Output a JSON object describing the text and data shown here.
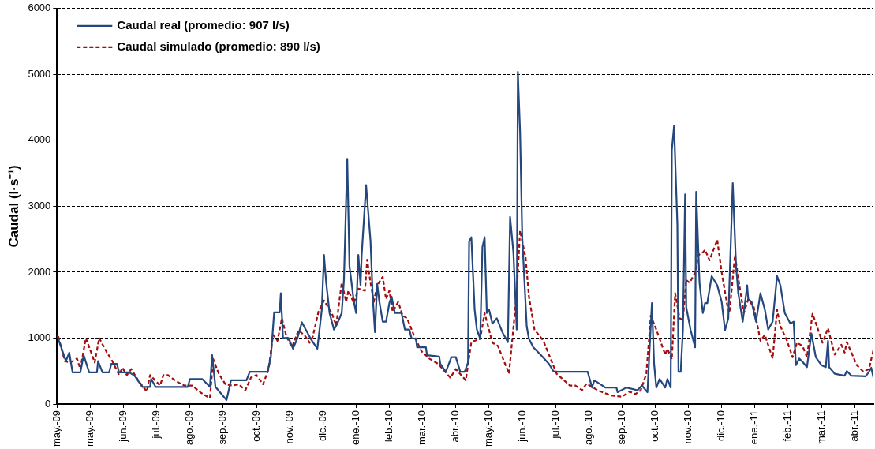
{
  "chart_data": {
    "type": "line",
    "ylabel": "Caudal (l·s⁻¹)",
    "xlim": [
      "2009-05-01",
      "2011-05-08"
    ],
    "xticks": [
      {
        "value": "2009-05-01",
        "label": "may.-09"
      },
      {
        "value": "2009-05-31",
        "label": "may.-09"
      },
      {
        "value": "2009-06-30",
        "label": "jun.-09"
      },
      {
        "value": "2009-07-30",
        "label": "jul.-09"
      },
      {
        "value": "2009-08-29",
        "label": "ago.-09"
      },
      {
        "value": "2009-09-28",
        "label": "sep.-09"
      },
      {
        "value": "2009-10-28",
        "label": "oct.-09"
      },
      {
        "value": "2009-11-27",
        "label": "nov.-09"
      },
      {
        "value": "2009-12-27",
        "label": "dic.-09"
      },
      {
        "value": "2010-01-26",
        "label": "ene.-10"
      },
      {
        "value": "2010-02-25",
        "label": "feb.-10"
      },
      {
        "value": "2010-03-27",
        "label": "mar.-10"
      },
      {
        "value": "2010-04-26",
        "label": "abr.-10"
      },
      {
        "value": "2010-05-26",
        "label": "may.-10"
      },
      {
        "value": "2010-06-25",
        "label": "jun.-10"
      },
      {
        "value": "2010-07-25",
        "label": "jul.-10"
      },
      {
        "value": "2010-08-24",
        "label": "ago.-10"
      },
      {
        "value": "2010-09-23",
        "label": "sep.-10"
      },
      {
        "value": "2010-10-23",
        "label": "oct.-10"
      },
      {
        "value": "2010-11-22",
        "label": "nov.-10"
      },
      {
        "value": "2010-12-22",
        "label": "dic.-10"
      },
      {
        "value": "2011-01-21",
        "label": "ene.-11"
      },
      {
        "value": "2011-02-20",
        "label": "feb.-11"
      },
      {
        "value": "2011-03-22",
        "label": "mar.-11"
      },
      {
        "value": "2011-04-21",
        "label": "abr.-11"
      }
    ],
    "ylim": [
      0,
      6000
    ],
    "yticks": [
      0,
      1000,
      2000,
      3000,
      4000,
      5000,
      6000
    ],
    "grid": "y",
    "legend": "top left",
    "marker": "none",
    "series": [
      {
        "name": "Caudal real (promedio: 907 l/s)",
        "color": "#24487e",
        "line_style": "solid",
        "x": [
          "2009-05-01",
          "2009-05-09",
          "2009-05-12",
          "2009-05-15",
          "2009-05-22",
          "2009-05-25",
          "2009-05-30",
          "2009-06-06",
          "2009-06-07",
          "2009-06-11",
          "2009-06-17",
          "2009-06-19",
          "2009-06-24",
          "2009-06-26",
          "2009-07-05",
          "2009-07-10",
          "2009-07-17",
          "2009-07-24",
          "2009-07-25",
          "2009-07-29",
          "2009-08-27",
          "2009-08-29",
          "2009-09-09",
          "2009-09-16",
          "2009-09-18",
          "2009-09-21",
          "2009-10-01",
          "2009-10-05",
          "2009-10-19",
          "2009-10-22",
          "2009-11-07",
          "2009-11-10",
          "2009-11-13",
          "2009-11-18",
          "2009-11-19",
          "2009-11-21",
          "2009-11-26",
          "2009-11-30",
          "2009-12-04",
          "2009-12-08",
          "2009-12-16",
          "2009-12-22",
          "2009-12-26",
          "2009-12-28",
          "2009-12-30",
          "2010-01-02",
          "2010-01-06",
          "2010-01-09",
          "2010-01-13",
          "2010-01-15",
          "2010-01-18",
          "2010-01-20",
          "2010-01-24",
          "2010-01-26",
          "2010-01-28",
          "2010-01-30",
          "2010-01-31",
          "2010-02-04",
          "2010-02-08",
          "2010-02-10",
          "2010-02-12",
          "2010-02-14",
          "2010-02-16",
          "2010-02-19",
          "2010-02-22",
          "2010-02-25",
          "2010-02-27",
          "2010-03-02",
          "2010-03-08",
          "2010-03-11",
          "2010-03-15",
          "2010-03-17",
          "2010-03-21",
          "2010-03-22",
          "2010-03-30",
          "2010-03-31",
          "2010-04-11",
          "2010-04-12",
          "2010-04-17",
          "2010-04-22",
          "2010-04-26",
          "2010-04-30",
          "2010-05-04",
          "2010-05-07",
          "2010-05-08",
          "2010-05-10",
          "2010-05-13",
          "2010-05-15",
          "2010-05-18",
          "2010-05-20",
          "2010-05-22",
          "2010-05-24",
          "2010-05-26",
          "2010-05-29",
          "2010-06-02",
          "2010-06-07",
          "2010-06-12",
          "2010-06-14",
          "2010-06-17",
          "2010-06-20",
          "2010-06-21",
          "2010-06-23",
          "2010-06-25",
          "2010-06-29",
          "2010-07-01",
          "2010-07-05",
          "2010-07-12",
          "2010-07-19",
          "2010-07-23",
          "2010-07-27",
          "2010-08-23",
          "2010-08-27",
          "2010-08-29",
          "2010-09-08",
          "2010-09-18",
          "2010-09-19",
          "2010-09-27",
          "2010-10-07",
          "2010-10-11",
          "2010-10-16",
          "2010-10-18",
          "2010-10-20",
          "2010-10-22",
          "2010-10-24",
          "2010-10-27",
          "2010-11-01",
          "2010-11-03",
          "2010-11-06",
          "2010-11-07",
          "2010-11-09",
          "2010-11-12",
          "2010-11-13",
          "2010-11-15",
          "2010-11-17",
          "2010-11-19",
          "2010-11-20",
          "2010-11-24",
          "2010-11-28",
          "2010-11-29",
          "2010-12-02",
          "2010-12-05",
          "2010-12-07",
          "2010-12-09",
          "2010-12-13",
          "2010-12-18",
          "2010-12-22",
          "2010-12-25",
          "2010-12-28",
          "2011-01-01",
          "2011-01-04",
          "2011-01-06",
          "2011-01-10",
          "2011-01-14",
          "2011-01-15",
          "2011-01-18",
          "2011-01-22",
          "2011-01-26",
          "2011-01-30",
          "2011-02-02",
          "2011-02-06",
          "2011-02-10",
          "2011-02-13",
          "2011-02-17",
          "2011-02-22",
          "2011-02-25",
          "2011-02-27",
          "2011-03-02",
          "2011-03-05",
          "2011-03-09",
          "2011-03-13",
          "2011-03-17",
          "2011-03-22",
          "2011-03-26",
          "2011-03-28",
          "2011-03-29",
          "2011-04-03",
          "2011-04-12",
          "2011-04-14",
          "2011-04-18",
          "2011-05-01",
          "2011-05-04",
          "2011-05-06",
          "2011-05-08"
        ],
        "values": [
          1040,
          650,
          780,
          480,
          480,
          740,
          480,
          480,
          650,
          480,
          480,
          610,
          610,
          480,
          480,
          430,
          260,
          260,
          380,
          260,
          260,
          380,
          380,
          260,
          740,
          260,
          60,
          360,
          360,
          490,
          490,
          710,
          1390,
          1390,
          1680,
          1000,
          1000,
          840,
          1000,
          1240,
          990,
          840,
          1430,
          2260,
          1840,
          1380,
          1130,
          1220,
          1380,
          1880,
          3720,
          2090,
          1550,
          1380,
          2260,
          1800,
          2260,
          3320,
          2470,
          1630,
          1090,
          1820,
          1550,
          1250,
          1250,
          1530,
          1630,
          1380,
          1380,
          1130,
          1130,
          1000,
          990,
          860,
          860,
          740,
          720,
          610,
          490,
          710,
          710,
          490,
          490,
          630,
          2470,
          2530,
          1430,
          1130,
          990,
          2380,
          2530,
          1380,
          1430,
          1220,
          1300,
          1090,
          940,
          2840,
          2300,
          1130,
          5040,
          4140,
          2510,
          1180,
          990,
          860,
          740,
          610,
          500,
          490,
          490,
          250,
          360,
          250,
          250,
          180,
          250,
          210,
          280,
          180,
          860,
          1530,
          610,
          250,
          380,
          250,
          380,
          250,
          3850,
          4220,
          2720,
          490,
          490,
          1120,
          3180,
          1470,
          1120,
          860,
          3220,
          1840,
          1380,
          1530,
          1530,
          1940,
          1800,
          1550,
          1120,
          1300,
          3350,
          2090,
          1680,
          1250,
          1800,
          1590,
          1550,
          1250,
          1680,
          1430,
          1130,
          1250,
          1940,
          1800,
          1380,
          1220,
          1250,
          590,
          690,
          640,
          560,
          1070,
          710,
          590,
          560,
          960,
          560,
          460,
          430,
          500,
          430,
          420,
          490,
          550,
          400
        ]
      },
      {
        "name": "Caudal simulado (promedio: 890 l/s)",
        "color": "#a50d0d",
        "line_style": "dashed",
        "x": [
          "2009-05-02",
          "2009-05-08",
          "2009-05-13",
          "2009-05-19",
          "2009-05-22",
          "2009-05-27",
          "2009-06-04",
          "2009-06-08",
          "2009-06-15",
          "2009-06-19",
          "2009-06-26",
          "2009-06-29",
          "2009-07-03",
          "2009-07-07",
          "2009-07-14",
          "2009-07-21",
          "2009-07-24",
          "2009-08-02",
          "2009-08-05",
          "2009-08-09",
          "2009-08-17",
          "2009-08-24",
          "2009-08-31",
          "2009-09-08",
          "2009-09-16",
          "2009-09-19",
          "2009-09-24",
          "2009-09-30",
          "2009-10-06",
          "2009-10-12",
          "2009-10-18",
          "2009-10-23",
          "2009-10-28",
          "2009-11-03",
          "2009-11-08",
          "2009-11-12",
          "2009-11-16",
          "2009-11-20",
          "2009-11-24",
          "2009-11-29",
          "2009-12-05",
          "2009-12-11",
          "2009-12-15",
          "2009-12-18",
          "2009-12-23",
          "2009-12-28",
          "2010-01-04",
          "2010-01-08",
          "2010-01-13",
          "2010-01-17",
          "2010-01-19",
          "2010-01-24",
          "2010-01-28",
          "2010-02-03",
          "2010-02-05",
          "2010-02-08",
          "2010-02-11",
          "2010-02-14",
          "2010-02-19",
          "2010-02-22",
          "2010-02-25",
          "2010-02-28",
          "2010-03-05",
          "2010-03-09",
          "2010-03-13",
          "2010-03-19",
          "2010-03-26",
          "2010-04-02",
          "2010-04-10",
          "2010-04-21",
          "2010-04-26",
          "2010-05-05",
          "2010-05-10",
          "2010-05-18",
          "2010-05-22",
          "2010-05-29",
          "2010-06-03",
          "2010-06-13",
          "2010-06-20",
          "2010-06-23",
          "2010-06-28",
          "2010-07-01",
          "2010-07-06",
          "2010-07-14",
          "2010-07-20",
          "2010-07-26",
          "2010-08-07",
          "2010-08-12",
          "2010-08-18",
          "2010-08-22",
          "2010-09-01",
          "2010-09-13",
          "2010-09-23",
          "2010-09-30",
          "2010-10-05",
          "2010-10-10",
          "2010-10-15",
          "2010-10-19",
          "2010-10-24",
          "2010-11-01",
          "2010-11-03",
          "2010-11-07",
          "2010-11-10",
          "2010-11-14",
          "2010-11-17",
          "2010-11-20",
          "2010-11-23",
          "2010-11-28",
          "2010-12-01",
          "2010-12-05",
          "2010-12-07",
          "2010-12-11",
          "2010-12-18",
          "2010-12-22",
          "2010-12-27",
          "2010-12-29",
          "2011-01-03",
          "2011-01-07",
          "2011-01-11",
          "2011-01-15",
          "2011-01-20",
          "2011-01-26",
          "2011-01-30",
          "2011-02-06",
          "2011-02-10",
          "2011-02-13",
          "2011-02-19",
          "2011-02-24",
          "2011-02-28",
          "2011-03-05",
          "2011-03-09",
          "2011-03-14",
          "2011-03-18",
          "2011-03-23",
          "2011-03-28",
          "2011-04-03",
          "2011-04-09",
          "2011-04-12",
          "2011-04-14",
          "2011-04-23",
          "2011-04-29",
          "2011-05-04",
          "2011-05-08"
        ],
        "values": [
          1030,
          650,
          630,
          690,
          530,
          1000,
          630,
          1000,
          780,
          680,
          440,
          550,
          440,
          530,
          340,
          190,
          440,
          280,
          440,
          440,
          340,
          280,
          280,
          170,
          90,
          680,
          460,
          300,
          280,
          300,
          210,
          400,
          440,
          300,
          530,
          1050,
          960,
          1300,
          1030,
          860,
          1120,
          1030,
          930,
          1030,
          1400,
          1570,
          1380,
          1190,
          1840,
          1550,
          1720,
          1530,
          1750,
          1720,
          2190,
          1840,
          1550,
          1800,
          1930,
          1590,
          1720,
          1400,
          1550,
          1340,
          1300,
          1050,
          800,
          690,
          610,
          400,
          530,
          360,
          940,
          990,
          1380,
          930,
          880,
          460,
          1680,
          2630,
          2220,
          1630,
          1130,
          960,
          710,
          460,
          280,
          280,
          210,
          310,
          210,
          130,
          110,
          190,
          150,
          210,
          460,
          1340,
          1130,
          750,
          840,
          680,
          1680,
          1300,
          1280,
          1880,
          1840,
          1990,
          2260,
          2300,
          2340,
          2180,
          2490,
          2000,
          1500,
          1380,
          2260,
          1800,
          1380,
          1590,
          1470,
          960,
          1050,
          690,
          1430,
          1180,
          960,
          710,
          930,
          880,
          710,
          1370,
          1180,
          930,
          1150,
          750,
          900,
          780,
          940,
          590,
          490,
          530,
          820
        ]
      }
    ]
  }
}
